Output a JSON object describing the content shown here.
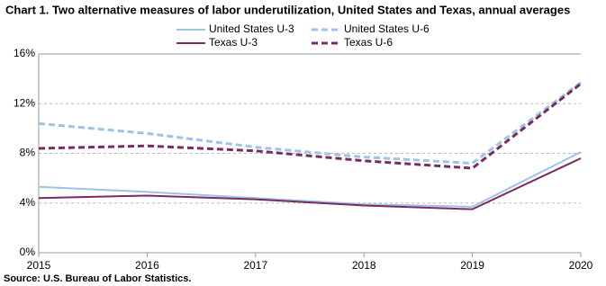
{
  "chart_data": {
    "type": "line",
    "title": "Chart 1. Two alternative measures of labor underutilization, United States and Texas, annual averages",
    "source": "Source: U.S. Bureau of Labor Statistics.",
    "x": [
      2015,
      2016,
      2017,
      2018,
      2019,
      2020
    ],
    "xlim": [
      2015,
      2020
    ],
    "xticks": [
      2015,
      2016,
      2017,
      2018,
      2019,
      2020
    ],
    "ylim": [
      0,
      16
    ],
    "yticks": [
      {
        "value": 0,
        "label": "0%"
      },
      {
        "value": 4,
        "label": "4%"
      },
      {
        "value": 8,
        "label": "8%"
      },
      {
        "value": 12,
        "label": "12%"
      },
      {
        "value": 16,
        "label": "16%"
      }
    ],
    "grid": true,
    "series": [
      {
        "name": "United States U-3",
        "color": "#9dc3e6",
        "dashed": false,
        "values": [
          5.3,
          4.9,
          4.4,
          3.9,
          3.7,
          8.1
        ]
      },
      {
        "name": "United States U-6",
        "color": "#9dc3e6",
        "dashed": true,
        "values": [
          10.4,
          9.6,
          8.5,
          7.7,
          7.2,
          13.7
        ]
      },
      {
        "name": "Texas U-3",
        "color": "#7b2c5e",
        "dashed": false,
        "values": [
          4.4,
          4.6,
          4.3,
          3.8,
          3.5,
          7.6
        ]
      },
      {
        "name": "Texas U-6",
        "color": "#7b2c5e",
        "dashed": true,
        "values": [
          8.4,
          8.6,
          8.2,
          7.4,
          6.8,
          13.6
        ]
      }
    ]
  }
}
